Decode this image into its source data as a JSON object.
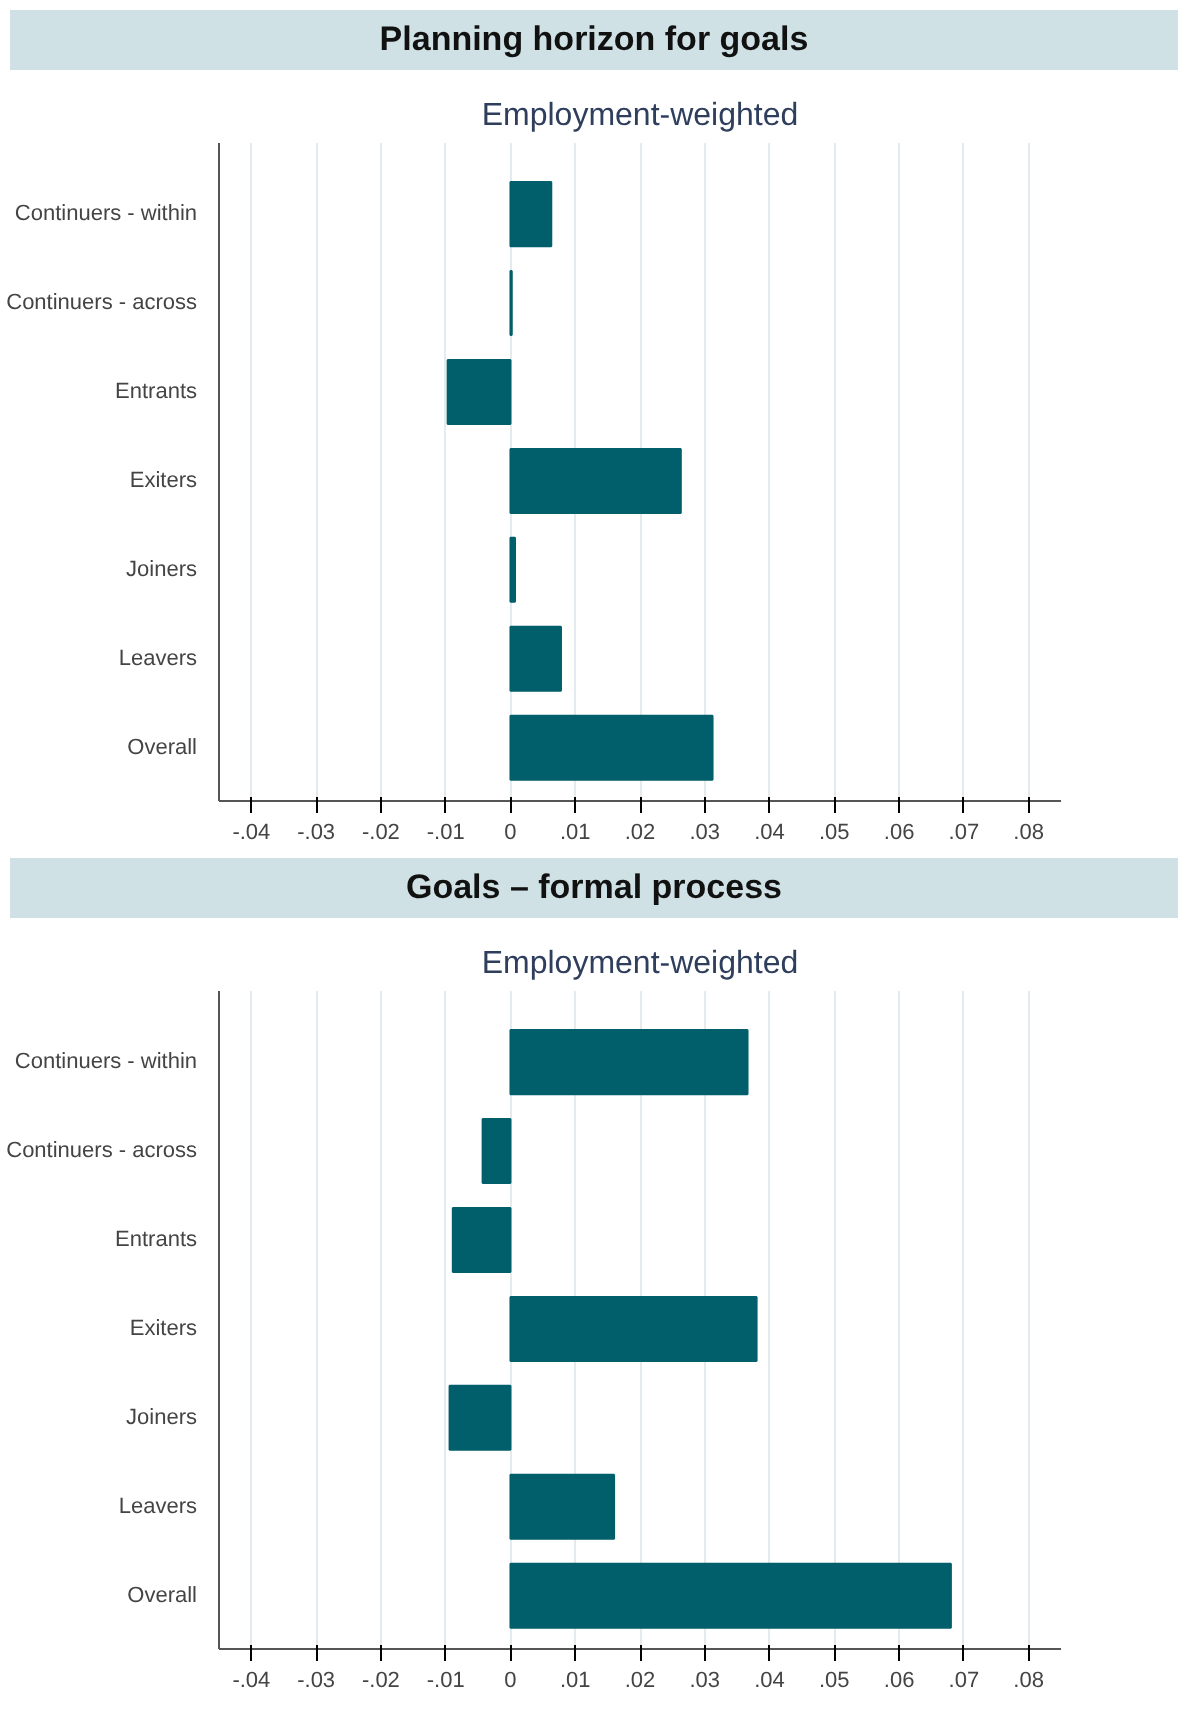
{
  "chart_data": [
    {
      "type": "bar",
      "orientation": "horizontal",
      "title": "Planning horizon for goals",
      "subtitle": "Employment-weighted",
      "categories": [
        "Continuers - within",
        "Continuers - across",
        "Entrants",
        "Exiters",
        "Joiners",
        "Leavers",
        "Overall"
      ],
      "values": [
        0.0063,
        0.0002,
        -0.0097,
        0.0263,
        0.0007,
        0.0078,
        0.0312
      ],
      "color": "#005f6b",
      "xlim": [
        -0.045,
        0.085
      ],
      "xticks": [
        {
          "value": -0.04,
          "label": "-.04"
        },
        {
          "value": -0.03,
          "label": "-.03"
        },
        {
          "value": -0.02,
          "label": "-.02"
        },
        {
          "value": -0.01,
          "label": "-.01"
        },
        0,
        {
          "value": 0.01,
          "label": ".01"
        },
        {
          "value": 0.02,
          "label": ".02"
        },
        {
          "value": 0.03,
          "label": ".03"
        },
        {
          "value": 0.04,
          "label": ".04"
        },
        {
          "value": 0.05,
          "label": ".05"
        },
        {
          "value": 0.06,
          "label": ".06"
        },
        {
          "value": 0.07,
          "label": ".07"
        },
        {
          "value": 0.08,
          "label": ".08"
        }
      ],
      "grid": "x"
    },
    {
      "type": "bar",
      "orientation": "horizontal",
      "title": "Goals – formal process",
      "subtitle": "Employment-weighted",
      "categories": [
        "Continuers - within",
        "Continuers - across",
        "Entrants",
        "Exiters",
        "Joiners",
        "Leavers",
        "Overall"
      ],
      "values": [
        0.0366,
        -0.0043,
        -0.0089,
        0.038,
        -0.0094,
        0.016,
        0.068
      ],
      "color": "#005f6b",
      "xlim": [
        -0.045,
        0.085
      ],
      "xticks": [
        {
          "value": -0.04,
          "label": "-.04"
        },
        {
          "value": -0.03,
          "label": "-.03"
        },
        {
          "value": -0.02,
          "label": "-.02"
        },
        {
          "value": -0.01,
          "label": "-.01"
        },
        0,
        {
          "value": 0.01,
          "label": ".01"
        },
        {
          "value": 0.02,
          "label": ".02"
        },
        {
          "value": 0.03,
          "label": ".03"
        },
        {
          "value": 0.04,
          "label": ".04"
        },
        {
          "value": 0.05,
          "label": ".05"
        },
        {
          "value": 0.06,
          "label": ".06"
        },
        {
          "value": 0.07,
          "label": ".07"
        },
        {
          "value": 0.08,
          "label": ".08"
        }
      ],
      "grid": "x"
    }
  ]
}
